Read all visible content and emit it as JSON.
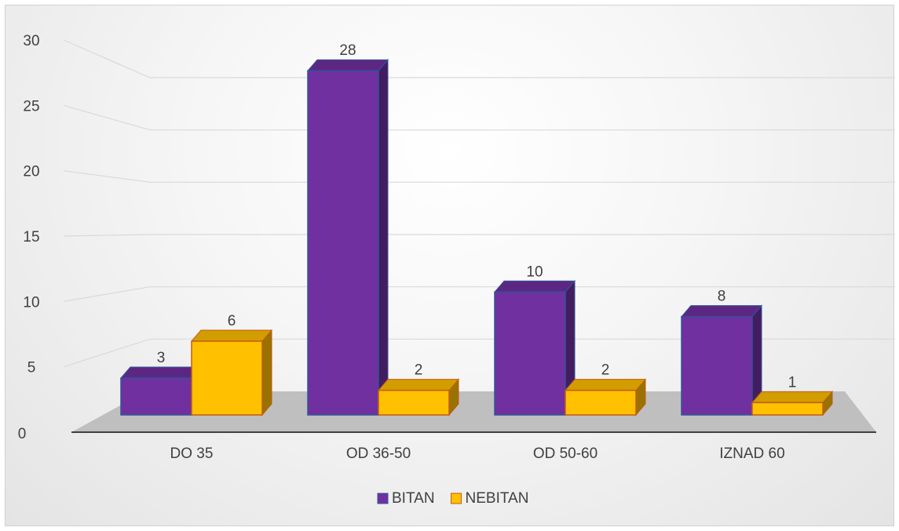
{
  "chart_data": {
    "type": "bar",
    "categories": [
      "DO 35",
      "OD 36-50",
      "OD 50-60",
      "IZNAD 60"
    ],
    "series": [
      {
        "name": "BITAN",
        "values": [
          3,
          28,
          10,
          8
        ],
        "color": "#7030a0"
      },
      {
        "name": "NEBITAN",
        "values": [
          6,
          2,
          2,
          1
        ],
        "color": "#ffc000"
      }
    ],
    "ylim": [
      0,
      30
    ],
    "yticks": [
      0,
      5,
      10,
      15,
      20,
      25,
      30
    ],
    "xlabel": "",
    "ylabel": "",
    "title": "",
    "grid": true,
    "legend": "bottom",
    "style": "3d-column"
  }
}
